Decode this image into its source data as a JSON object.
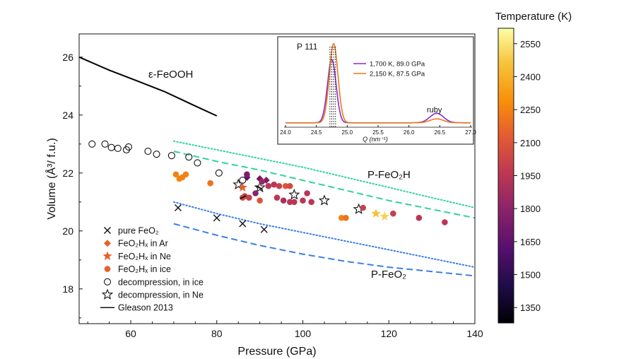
{
  "chart_data": {
    "type": "scatter",
    "xlabel": "Pressure (GPa)",
    "ylabel": "Volume (Å³/ f.u.)",
    "xlim": [
      48,
      140
    ],
    "ylim": [
      16.8,
      26.8
    ],
    "xticks": [
      60,
      80,
      100,
      120,
      140
    ],
    "yticks": [
      18,
      20,
      22,
      24,
      26
    ],
    "annotations": {
      "feooh": "ε-FeOOH",
      "pfeo2h": "P-FeO₂H",
      "pfeo2": "P-FeO₂"
    },
    "legend": {
      "placement": "bottom-left",
      "entries": [
        {
          "marker": "x",
          "label": "pure FeO₂"
        },
        {
          "marker": "diamond",
          "label": "FeO₂Hₓ in Ar",
          "color": "#e8602c"
        },
        {
          "marker": "star",
          "label": "FeO₂Hₓ in Ne",
          "color": "#e8602c"
        },
        {
          "marker": "circle",
          "label": "FeO₂Hₓ in ice",
          "color": "#e8602c"
        },
        {
          "marker": "open-circle",
          "label": "decompression, in ice"
        },
        {
          "marker": "open-star",
          "label": "decompression, in Ne"
        },
        {
          "marker": "line",
          "label": "Gleason 2013"
        }
      ]
    },
    "colorbar": {
      "label": "Temperature (K)",
      "range": [
        1280,
        2620
      ],
      "ticks": [
        1350,
        1500,
        1650,
        1800,
        1950,
        2100,
        2250,
        2400,
        2550
      ]
    },
    "series": [
      {
        "kind": "line",
        "style": "solid",
        "color": "#000000",
        "x": [
          48,
          55,
          62,
          68,
          74,
          80
        ],
        "y": [
          26.0,
          25.55,
          25.15,
          24.8,
          24.38,
          23.97
        ]
      },
      {
        "kind": "line",
        "style": "dotted",
        "color": "#2fd39a",
        "x": [
          70,
          80,
          90,
          100,
          110,
          120,
          130,
          140
        ],
        "y": [
          23.1,
          22.8,
          22.5,
          22.2,
          21.85,
          21.5,
          21.15,
          20.8
        ]
      },
      {
        "kind": "line",
        "style": "dashed",
        "color": "#2fd39a",
        "x": [
          70,
          80,
          90,
          100,
          110,
          120,
          130,
          140
        ],
        "y": [
          22.75,
          22.4,
          22.1,
          21.75,
          21.4,
          21.05,
          20.75,
          20.45
        ]
      },
      {
        "kind": "line",
        "style": "dotted",
        "color": "#3a7ee6",
        "x": [
          70,
          80,
          90,
          100,
          110,
          120,
          130,
          140
        ],
        "y": [
          21.0,
          20.6,
          20.25,
          19.95,
          19.65,
          19.35,
          19.05,
          18.75
        ]
      },
      {
        "kind": "line",
        "style": "dashed",
        "color": "#3a7ee6",
        "x": [
          70,
          80,
          90,
          100,
          110,
          120,
          130,
          140
        ],
        "y": [
          20.25,
          19.85,
          19.5,
          19.2,
          18.95,
          18.75,
          18.6,
          18.45
        ]
      },
      {
        "kind": "points",
        "marker": "x",
        "points": [
          [
            71,
            20.8
          ],
          [
            80,
            20.45
          ],
          [
            86,
            20.25
          ],
          [
            91,
            20.05
          ]
        ]
      },
      {
        "kind": "points",
        "marker": "open-circle",
        "points": [
          [
            51,
            23.0
          ],
          [
            54,
            23.0
          ],
          [
            55.5,
            22.88
          ],
          [
            57,
            22.85
          ],
          [
            59,
            22.8
          ],
          [
            59.5,
            22.9
          ],
          [
            64,
            22.75
          ],
          [
            66,
            22.65
          ],
          [
            69.5,
            22.6
          ],
          [
            73.5,
            22.55
          ],
          [
            75.5,
            22.35
          ],
          [
            80.5,
            22.0
          ],
          [
            86,
            21.75
          ]
        ]
      },
      {
        "kind": "points",
        "marker": "open-star",
        "points": [
          [
            85,
            21.6
          ],
          [
            90,
            21.5
          ],
          [
            98,
            21.25
          ],
          [
            105,
            21.05
          ],
          [
            113,
            20.75
          ]
        ]
      },
      {
        "kind": "points",
        "marker": "diamond",
        "points": [
          [
            87,
            21.85,
            1650
          ],
          [
            90,
            21.8,
            1700
          ],
          [
            91.5,
            21.75,
            1750
          ]
        ]
      },
      {
        "kind": "points",
        "marker": "star",
        "points": [
          [
            86,
            21.5,
            2150
          ],
          [
            117,
            20.6,
            2450
          ],
          [
            119,
            20.5,
            2500
          ]
        ]
      },
      {
        "kind": "points",
        "marker": "circle",
        "points": [
          [
            70.5,
            21.95,
            2250
          ],
          [
            71.3,
            21.8,
            2250
          ],
          [
            72,
            21.85,
            2250
          ],
          [
            72.8,
            21.95,
            2250
          ],
          [
            78.5,
            21.65,
            2200
          ],
          [
            86.5,
            21.2,
            2000
          ],
          [
            87.5,
            21.15,
            2000
          ],
          [
            89,
            21.3,
            1800
          ],
          [
            90.5,
            21.7,
            1850
          ],
          [
            92,
            21.55,
            1950
          ],
          [
            93.3,
            21.6,
            1950
          ],
          [
            94.5,
            21.55,
            2000
          ],
          [
            96,
            21.55,
            2100
          ],
          [
            97,
            21.55,
            2050
          ],
          [
            94,
            21.15,
            1950
          ],
          [
            95.5,
            21.05,
            1900
          ],
          [
            97,
            21.0,
            1950
          ],
          [
            98,
            21.0,
            1950
          ],
          [
            100,
            21.05,
            1950
          ],
          [
            101,
            21.3,
            1950
          ],
          [
            102,
            21.0,
            1950
          ],
          [
            109,
            20.45,
            2250
          ],
          [
            110,
            20.45,
            2200
          ],
          [
            114,
            20.8,
            2000
          ],
          [
            121,
            20.6,
            2000
          ],
          [
            127,
            20.45,
            1950
          ],
          [
            133,
            20.3,
            1950
          ],
          [
            87,
            21.95,
            1750
          ],
          [
            86,
            21.15,
            2050
          ],
          [
            90,
            21.05,
            2100
          ]
        ]
      }
    ],
    "inset": {
      "title": "P 111",
      "xlabel": "Q (nm⁻¹)",
      "xlim": [
        24.0,
        27.0
      ],
      "xticks": [
        "24.0",
        "24.5",
        "25.0",
        "25.5",
        "26.0",
        "26.5",
        "27.0"
      ],
      "peak_annotation": "ruby",
      "series": [
        {
          "name": "1,700 K, 89.0 GPa",
          "color": "#8a2cc7",
          "peaks": [
            [
              24.75,
              0.8,
              0.07
            ],
            [
              26.45,
              0.12,
              0.11
            ]
          ]
        },
        {
          "name": "2,150 K, 87.5 GPa",
          "color": "#e87a1e",
          "peaks": [
            [
              24.78,
              1.0,
              0.07
            ],
            [
              26.45,
              0.05,
              0.11
            ]
          ]
        }
      ]
    }
  }
}
